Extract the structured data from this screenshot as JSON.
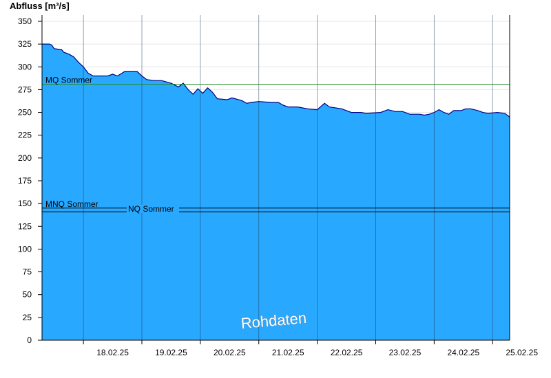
{
  "chart_data": {
    "type": "area",
    "ylabel": "Abfluss [m³/s]",
    "ylim": [
      0,
      360
    ],
    "yticks": [
      0,
      25,
      50,
      75,
      100,
      125,
      150,
      175,
      200,
      225,
      250,
      275,
      300,
      325,
      350
    ],
    "xlim": [
      "17.02.25 07:00",
      "25.02.25 07:00"
    ],
    "x_ticks": [
      "18.02.25",
      "19.02.25",
      "20.02.25",
      "21.02.25",
      "22.02.25",
      "23.02.25",
      "24.02.25",
      "25.02.25"
    ],
    "grid": true,
    "series": [
      {
        "color": "#29a8ff",
        "outline_color": "#000080",
        "points": [
          [
            "17.02.25 07:00",
            325
          ],
          [
            "17.02.25 10:00",
            325
          ],
          [
            "17.02.25 11:00",
            324
          ],
          [
            "17.02.25 12:00",
            320
          ],
          [
            "17.02.25 15:00",
            319
          ],
          [
            "17.02.25 16:00",
            316
          ],
          [
            "17.02.25 18:00",
            314
          ],
          [
            "17.02.25 20:00",
            311
          ],
          [
            "17.02.25 22:00",
            305
          ],
          [
            "18.02.25 00:00",
            300
          ],
          [
            "18.02.25 02:00",
            293
          ],
          [
            "18.02.25 04:00",
            290
          ],
          [
            "18.02.25 10:00",
            290
          ],
          [
            "18.02.25 12:00",
            292
          ],
          [
            "18.02.25 14:00",
            290
          ],
          [
            "18.02.25 17:00",
            295
          ],
          [
            "18.02.25 22:00",
            295
          ],
          [
            "19.02.25 00:00",
            290
          ],
          [
            "19.02.25 02:00",
            286
          ],
          [
            "19.02.25 05:00",
            285
          ],
          [
            "19.02.25 08:00",
            285
          ],
          [
            "19.02.25 12:00",
            282
          ],
          [
            "19.02.25 15:00",
            278
          ],
          [
            "19.02.25 17:00",
            282
          ],
          [
            "19.02.25 19:00",
            275
          ],
          [
            "19.02.25 21:00",
            270
          ],
          [
            "19.02.25 23:00",
            276
          ],
          [
            "20.02.25 01:00",
            271
          ],
          [
            "20.02.25 03:00",
            277
          ],
          [
            "20.02.25 05:00",
            272
          ],
          [
            "20.02.25 07:00",
            265
          ],
          [
            "20.02.25 11:00",
            264
          ],
          [
            "20.02.25 13:00",
            266
          ],
          [
            "20.02.25 17:00",
            263
          ],
          [
            "20.02.25 19:00",
            260
          ],
          [
            "20.02.25 21:00",
            261
          ],
          [
            "21.02.25 00:00",
            262
          ],
          [
            "21.02.25 05:00",
            261
          ],
          [
            "21.02.25 08:00",
            261
          ],
          [
            "21.02.25 10:00",
            258
          ],
          [
            "21.02.25 12:00",
            256
          ],
          [
            "21.02.25 16:00",
            256
          ],
          [
            "21.02.25 20:00",
            254
          ],
          [
            "22.02.25 00:00",
            253
          ],
          [
            "22.02.25 03:00",
            260
          ],
          [
            "22.02.25 05:00",
            256
          ],
          [
            "22.02.25 10:00",
            254
          ],
          [
            "22.02.25 12:00",
            252
          ],
          [
            "22.02.25 14:00",
            250
          ],
          [
            "22.02.25 18:00",
            250
          ],
          [
            "22.02.25 20:00",
            249
          ],
          [
            "23.02.25 02:00",
            250
          ],
          [
            "23.02.25 05:00",
            253
          ],
          [
            "23.02.25 08:00",
            251
          ],
          [
            "23.02.25 11:00",
            251
          ],
          [
            "23.02.25 14:00",
            248
          ],
          [
            "23.02.25 18:00",
            248
          ],
          [
            "23.02.25 20:00",
            247
          ],
          [
            "23.02.25 22:00",
            248
          ],
          [
            "24.02.25 00:00",
            250
          ],
          [
            "24.02.25 02:00",
            253
          ],
          [
            "24.02.25 04:00",
            250
          ],
          [
            "24.02.25 06:00",
            248
          ],
          [
            "24.02.25 08:00",
            252
          ],
          [
            "24.02.25 11:00",
            252
          ],
          [
            "24.02.25 13:00",
            254
          ],
          [
            "24.02.25 15:00",
            254
          ],
          [
            "24.02.25 18:00",
            252
          ],
          [
            "24.02.25 20:00",
            250
          ],
          [
            "24.02.25 22:00",
            249
          ],
          [
            "25.02.25 02:00",
            250
          ],
          [
            "25.02.25 05:00",
            249
          ],
          [
            "25.02.25 07:00",
            245
          ]
        ]
      }
    ],
    "reference_lines": [
      {
        "label": "MQ Sommer",
        "value": 281,
        "color": "#228b22"
      },
      {
        "label": "MNQ Sommer",
        "value": 145,
        "color": "#000000"
      },
      {
        "label": "NQ Sommer",
        "value": 141,
        "color": "#000000"
      }
    ],
    "watermark": "Rohdaten"
  }
}
